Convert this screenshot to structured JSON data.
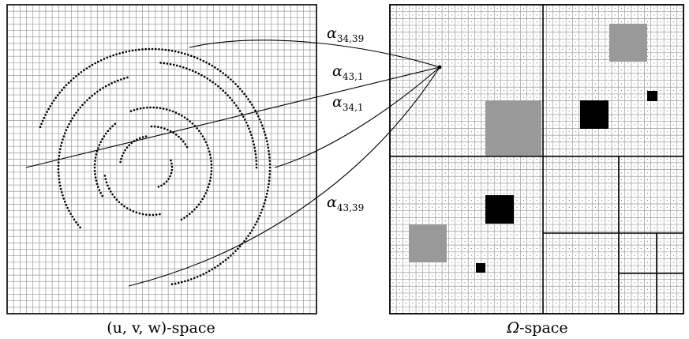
{
  "left_panel": {
    "caption_math": "(u, v, w)",
    "caption_suffix": "-space"
  },
  "right_panel": {
    "caption_math": "Ω",
    "caption_suffix": "-space"
  },
  "edge_labels": [
    {
      "id": "a34_39",
      "symbol": "α",
      "subscript": "34,39"
    },
    {
      "id": "a43_1",
      "symbol": "α",
      "subscript": "43,1"
    },
    {
      "id": "a34_1",
      "symbol": "α",
      "subscript": "34,1"
    },
    {
      "id": "a43_39",
      "symbol": "α",
      "subscript": "43,39"
    }
  ],
  "colors": {
    "grid_line": "#9a9a9a",
    "frame": "#000000",
    "gray_block": "#999999",
    "black_block": "#000000",
    "dot": "#000000"
  }
}
